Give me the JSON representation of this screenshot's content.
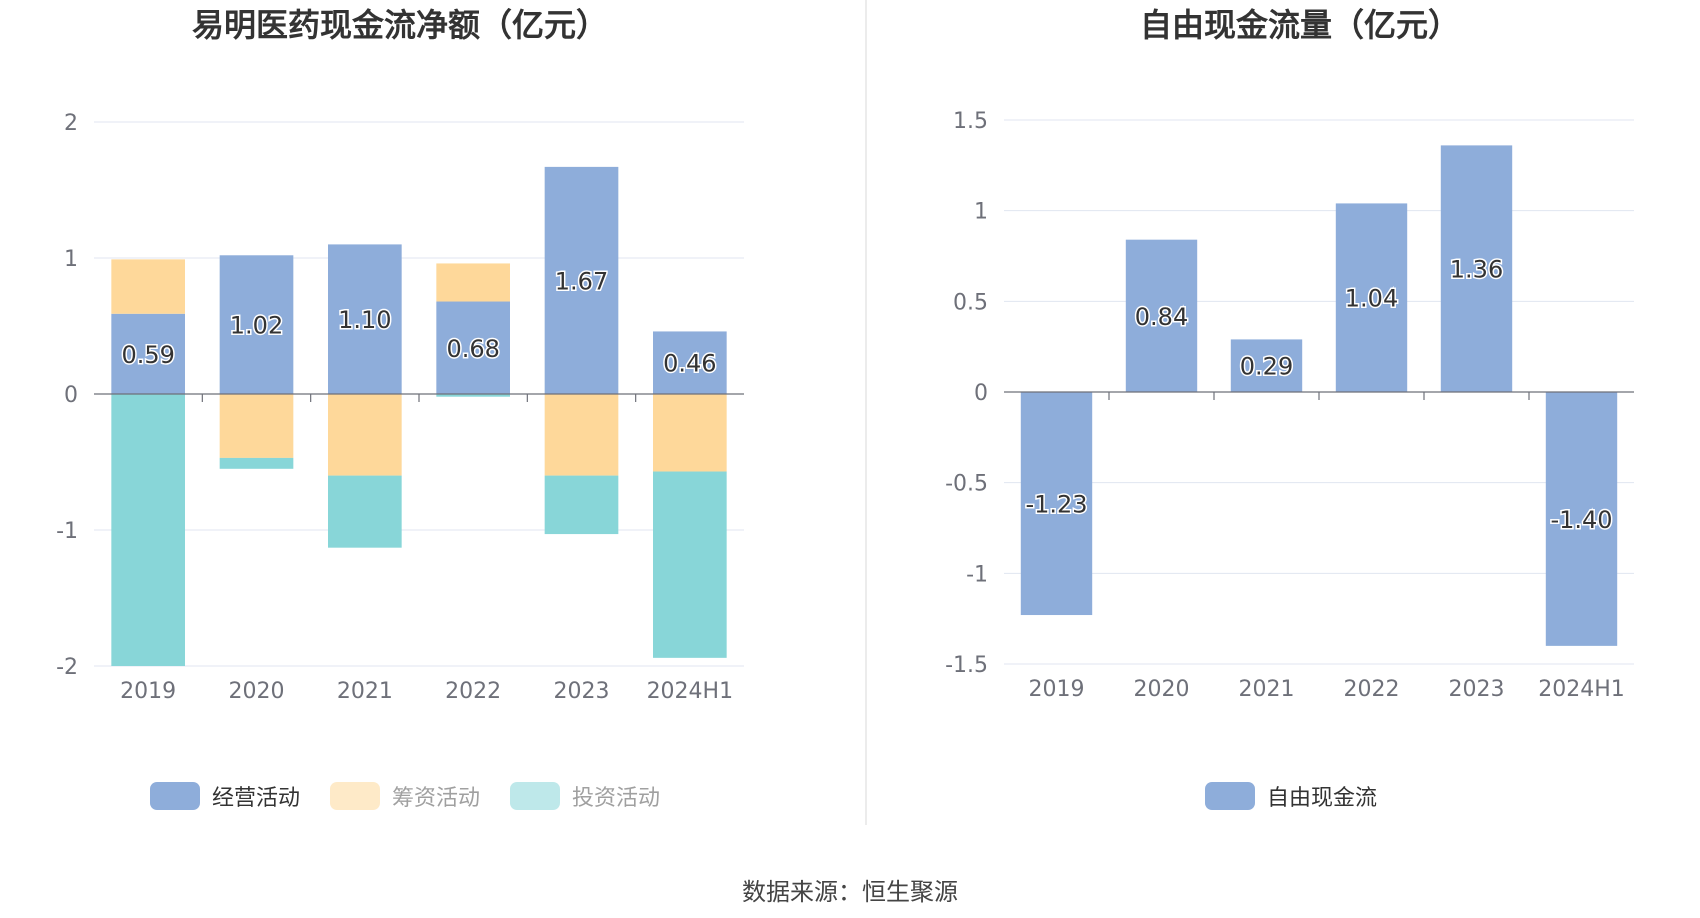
{
  "colors": {
    "operating": "#8eadda",
    "financing": "#fed89a",
    "investing": "#88d6d8",
    "free_cash_flow": "#8eadda"
  },
  "source": "数据来源：恒生聚源",
  "chart_data": [
    {
      "type": "bar",
      "stacked": true,
      "title": "易明医药现金流净额（亿元）",
      "categories": [
        "2019",
        "2020",
        "2021",
        "2022",
        "2023",
        "2024H1"
      ],
      "ylim": [
        -2,
        2
      ],
      "yticks": [
        "2",
        "1",
        "0",
        "-1",
        "-2"
      ],
      "grid": true,
      "legend_position": "bottom",
      "series": [
        {
          "name": "经营活动",
          "key": "operating",
          "values": [
            0.59,
            1.02,
            1.1,
            0.68,
            1.67,
            0.46
          ],
          "labels": [
            "0.59",
            "1.02",
            "1.10",
            "0.68",
            "1.67",
            "0.46"
          ]
        },
        {
          "name": "筹资活动",
          "key": "financing",
          "values": [
            0.4,
            -0.47,
            -0.6,
            0.28,
            -0.6,
            -0.57
          ]
        },
        {
          "name": "投资活动",
          "key": "investing",
          "values": [
            -2.0,
            -0.08,
            -0.53,
            -0.02,
            -0.43,
            -1.37
          ]
        }
      ]
    },
    {
      "type": "bar",
      "title": "自由现金流量（亿元）",
      "categories": [
        "2019",
        "2020",
        "2021",
        "2022",
        "2023",
        "2024H1"
      ],
      "ylim": [
        -1.5,
        1.5
      ],
      "yticks": [
        "1.5",
        "1",
        "0.5",
        "0",
        "-0.5",
        "-1",
        "-1.5"
      ],
      "grid": true,
      "legend_position": "bottom",
      "series": [
        {
          "name": "自由现金流",
          "key": "free_cash_flow",
          "values": [
            -1.23,
            0.84,
            0.29,
            1.04,
            1.36,
            -1.4
          ],
          "labels": [
            "-1.23",
            "0.84",
            "0.29",
            "1.04",
            "1.36",
            "-1.40"
          ]
        }
      ]
    }
  ]
}
